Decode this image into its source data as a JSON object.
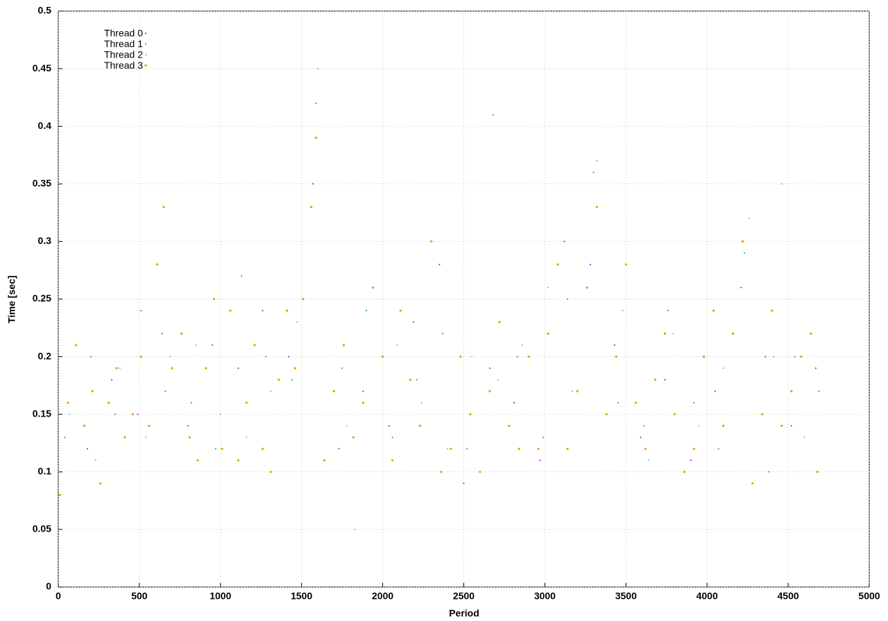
{
  "chart_data": {
    "type": "scatter",
    "xlabel": "Period",
    "ylabel": "Time [sec]",
    "xlim": [
      0,
      5000
    ],
    "xticks": [
      0,
      500,
      1000,
      1500,
      2000,
      2500,
      3000,
      3500,
      4000,
      4500,
      5000
    ],
    "ylim": [
      0,
      0.5
    ],
    "yticks": [
      0,
      0.05,
      0.1,
      0.15,
      0.2,
      0.25,
      0.3,
      0.35,
      0.4,
      0.45,
      0.5
    ],
    "grid": true,
    "legend": "top-left",
    "series": [
      {
        "name": "Thread 0",
        "color": "#9400d3",
        "x": [
          20,
          180,
          330,
          490,
          640,
          800,
          950,
          1110,
          1260,
          1420,
          1570,
          1730,
          1880,
          2040,
          2190,
          2350,
          2500,
          2660,
          2810,
          2970,
          3120,
          3280,
          3430,
          3590,
          3740,
          3900,
          4050,
          4210,
          4360,
          4520,
          4670
        ],
        "values": [
          0.1,
          0.12,
          0.18,
          0.15,
          0.22,
          0.14,
          0.21,
          0.19,
          0.24,
          0.2,
          0.35,
          0.12,
          0.17,
          0.14,
          0.23,
          0.28,
          0.09,
          0.19,
          0.16,
          0.11,
          0.3,
          0.28,
          0.21,
          0.13,
          0.18,
          0.11,
          0.17,
          0.26,
          0.2,
          0.14,
          0.19
        ]
      },
      {
        "name": "Thread 1",
        "color": "#009e73",
        "x": [
          40,
          200,
          350,
          510,
          660,
          820,
          970,
          1130,
          1280,
          1440,
          1590,
          1750,
          1900,
          2060,
          2210,
          2370,
          2520,
          2680,
          2830,
          2990,
          3140,
          3300,
          3450,
          3610,
          3760,
          3920,
          4070,
          4230,
          4380,
          4540,
          4690
        ],
        "values": [
          0.13,
          0.2,
          0.15,
          0.24,
          0.17,
          0.16,
          0.12,
          0.27,
          0.2,
          0.18,
          0.42,
          0.19,
          0.24,
          0.13,
          0.18,
          0.22,
          0.12,
          0.41,
          0.2,
          0.13,
          0.25,
          0.36,
          0.16,
          0.14,
          0.24,
          0.16,
          0.12,
          0.29,
          0.1,
          0.2,
          0.17
        ]
      },
      {
        "name": "Thread 2",
        "color": "#56b4e9",
        "x": [
          70,
          230,
          380,
          540,
          690,
          850,
          1000,
          1160,
          1310,
          1470,
          1600,
          1780,
          1830,
          2090,
          2240,
          2400,
          2550,
          2710,
          2860,
          3020,
          3170,
          3320,
          3480,
          3640,
          3790,
          3950,
          4100,
          4260,
          4410,
          4460,
          4600
        ],
        "values": [
          0.15,
          0.11,
          0.19,
          0.13,
          0.2,
          0.21,
          0.15,
          0.13,
          0.17,
          0.23,
          0.45,
          0.14,
          0.05,
          0.21,
          0.16,
          0.12,
          0.2,
          0.18,
          0.21,
          0.26,
          0.17,
          0.37,
          0.24,
          0.11,
          0.22,
          0.14,
          0.19,
          0.32,
          0.2,
          0.35,
          0.13
        ]
      },
      {
        "name": "Thread 3",
        "color": "#e69f00",
        "x": [
          10,
          60,
          110,
          160,
          210,
          260,
          310,
          360,
          410,
          460,
          510,
          560,
          610,
          650,
          700,
          760,
          810,
          860,
          910,
          960,
          1010,
          1060,
          1110,
          1160,
          1210,
          1260,
          1310,
          1360,
          1410,
          1460,
          1510,
          1560,
          1590,
          1640,
          1700,
          1760,
          1820,
          1880,
          1940,
          2000,
          2060,
          2110,
          2170,
          2230,
          2300,
          2360,
          2420,
          2480,
          2540,
          2600,
          2660,
          2720,
          2780,
          2840,
          2900,
          2960,
          3020,
          3080,
          3140,
          3200,
          3260,
          3320,
          3380,
          3440,
          3500,
          3560,
          3620,
          3680,
          3740,
          3800,
          3860,
          3920,
          3980,
          4040,
          4100,
          4160,
          4220,
          4280,
          4340,
          4400,
          4460,
          4520,
          4580,
          4640,
          4680
        ],
        "values": [
          0.08,
          0.16,
          0.21,
          0.14,
          0.17,
          0.09,
          0.16,
          0.19,
          0.13,
          0.15,
          0.2,
          0.14,
          0.28,
          0.33,
          0.19,
          0.22,
          0.13,
          0.11,
          0.19,
          0.25,
          0.12,
          0.24,
          0.11,
          0.16,
          0.21,
          0.12,
          0.1,
          0.18,
          0.24,
          0.19,
          0.25,
          0.33,
          0.39,
          0.11,
          0.17,
          0.21,
          0.13,
          0.16,
          0.26,
          0.2,
          0.11,
          0.24,
          0.18,
          0.14,
          0.3,
          0.1,
          0.12,
          0.2,
          0.15,
          0.1,
          0.17,
          0.23,
          0.14,
          0.12,
          0.2,
          0.12,
          0.22,
          0.28,
          0.12,
          0.17,
          0.26,
          0.33,
          0.15,
          0.2,
          0.28,
          0.16,
          0.12,
          0.18,
          0.22,
          0.15,
          0.1,
          0.12,
          0.2,
          0.24,
          0.14,
          0.22,
          0.3,
          0.09,
          0.15,
          0.24,
          0.14,
          0.17,
          0.2,
          0.22,
          0.1
        ]
      }
    ]
  }
}
